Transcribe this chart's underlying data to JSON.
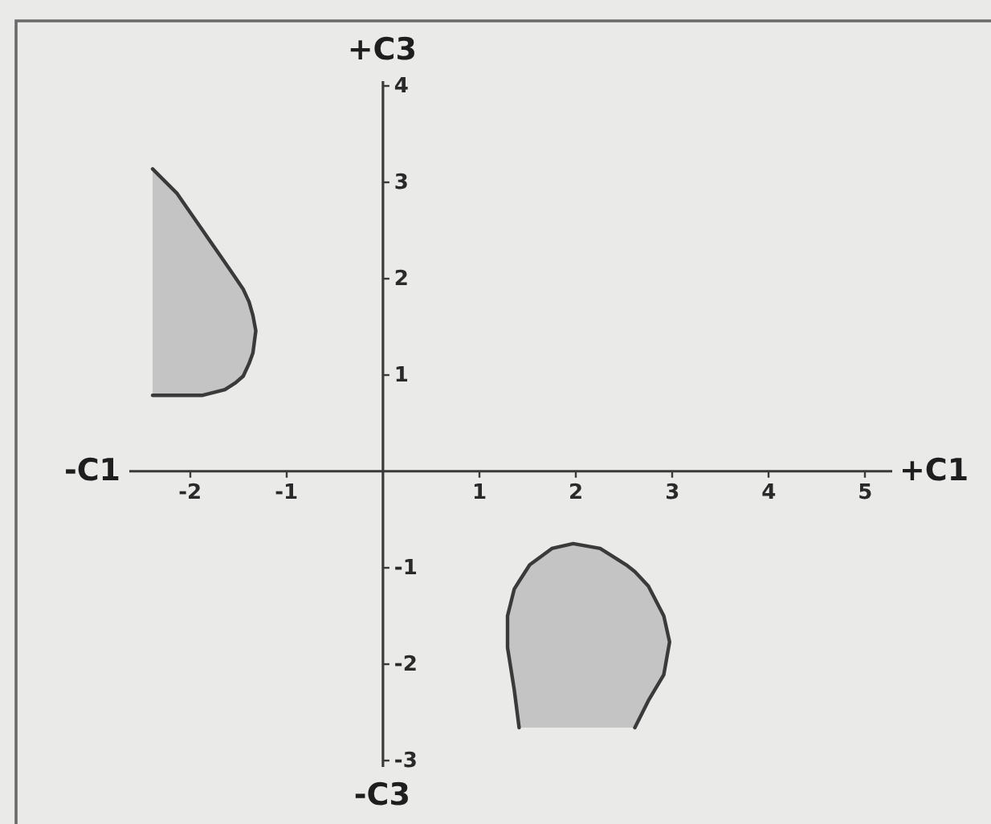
{
  "chart_data": {
    "type": "line",
    "xlabel": "+C1",
    "ylabel": "+C3",
    "annotations": [
      "-C1",
      "-C3"
    ],
    "xlim": [
      -2.63,
      5.28
    ],
    "ylim": [
      -3.07,
      4.05
    ],
    "xticks": [
      -2,
      -1,
      1,
      2,
      3,
      4,
      5
    ],
    "yticks": [
      -3,
      -2,
      -1,
      1,
      2,
      3,
      4
    ],
    "grid": false,
    "series": [
      {
        "color": "#3a3a3a",
        "x": [
          -2.38,
          -2.13,
          -1.86,
          -1.63,
          -1.52,
          -1.44,
          -1.38,
          -1.34,
          -1.31,
          -1.34,
          -1.38,
          -1.44,
          -1.52,
          -1.63,
          -1.86,
          -2.13,
          -2.38
        ],
        "values": [
          3.13,
          2.88,
          2.49,
          2.16,
          2.0,
          1.88,
          1.75,
          1.61,
          1.45,
          1.22,
          1.11,
          0.98,
          0.91,
          0.84,
          0.78,
          0.78,
          0.78
        ],
        "lower": [
          0.78,
          0.78,
          0.78,
          0.84,
          0.91,
          0.98,
          1.11,
          1.22,
          1.45,
          1.22,
          1.11,
          0.98,
          0.91,
          0.84,
          0.78,
          0.78,
          0.78
        ],
        "upper": [
          3.13,
          2.88,
          2.49,
          2.16,
          2.0,
          1.88,
          1.75,
          1.61,
          1.45,
          1.61,
          1.75,
          1.88,
          2.0,
          2.16,
          2.49,
          2.88,
          3.13
        ]
      },
      {
        "color": "#3a3a3a",
        "x": [
          1.42,
          1.37,
          1.3,
          1.3,
          1.37,
          1.42,
          1.53,
          1.76,
          1.98,
          2.26,
          2.53,
          2.62,
          2.76,
          2.92,
          2.98,
          2.92,
          2.76,
          2.62
        ],
        "values": [
          -2.67,
          -2.28,
          -1.84,
          -1.51,
          -1.23,
          -1.15,
          -0.98,
          -0.81,
          -0.76,
          -0.81,
          -0.98,
          -1.05,
          -1.2,
          -1.51,
          -1.78,
          -2.12,
          -2.39,
          -2.67
        ],
        "lower": [
          -2.67,
          -2.28,
          -1.84,
          -1.84,
          -2.28,
          -2.67,
          -2.67,
          -2.67,
          -2.67,
          -2.67,
          -2.67,
          -2.67,
          -2.39,
          -2.12,
          -1.78,
          -2.12,
          -2.39,
          -2.67
        ],
        "upper": [
          -1.15,
          -1.23,
          -1.51,
          -1.51,
          -1.23,
          -1.15,
          -0.98,
          -0.81,
          -0.76,
          -0.81,
          -0.98,
          -1.05,
          -1.2,
          -1.51,
          -1.78,
          -1.51,
          -1.2,
          -1.05
        ]
      }
    ]
  }
}
